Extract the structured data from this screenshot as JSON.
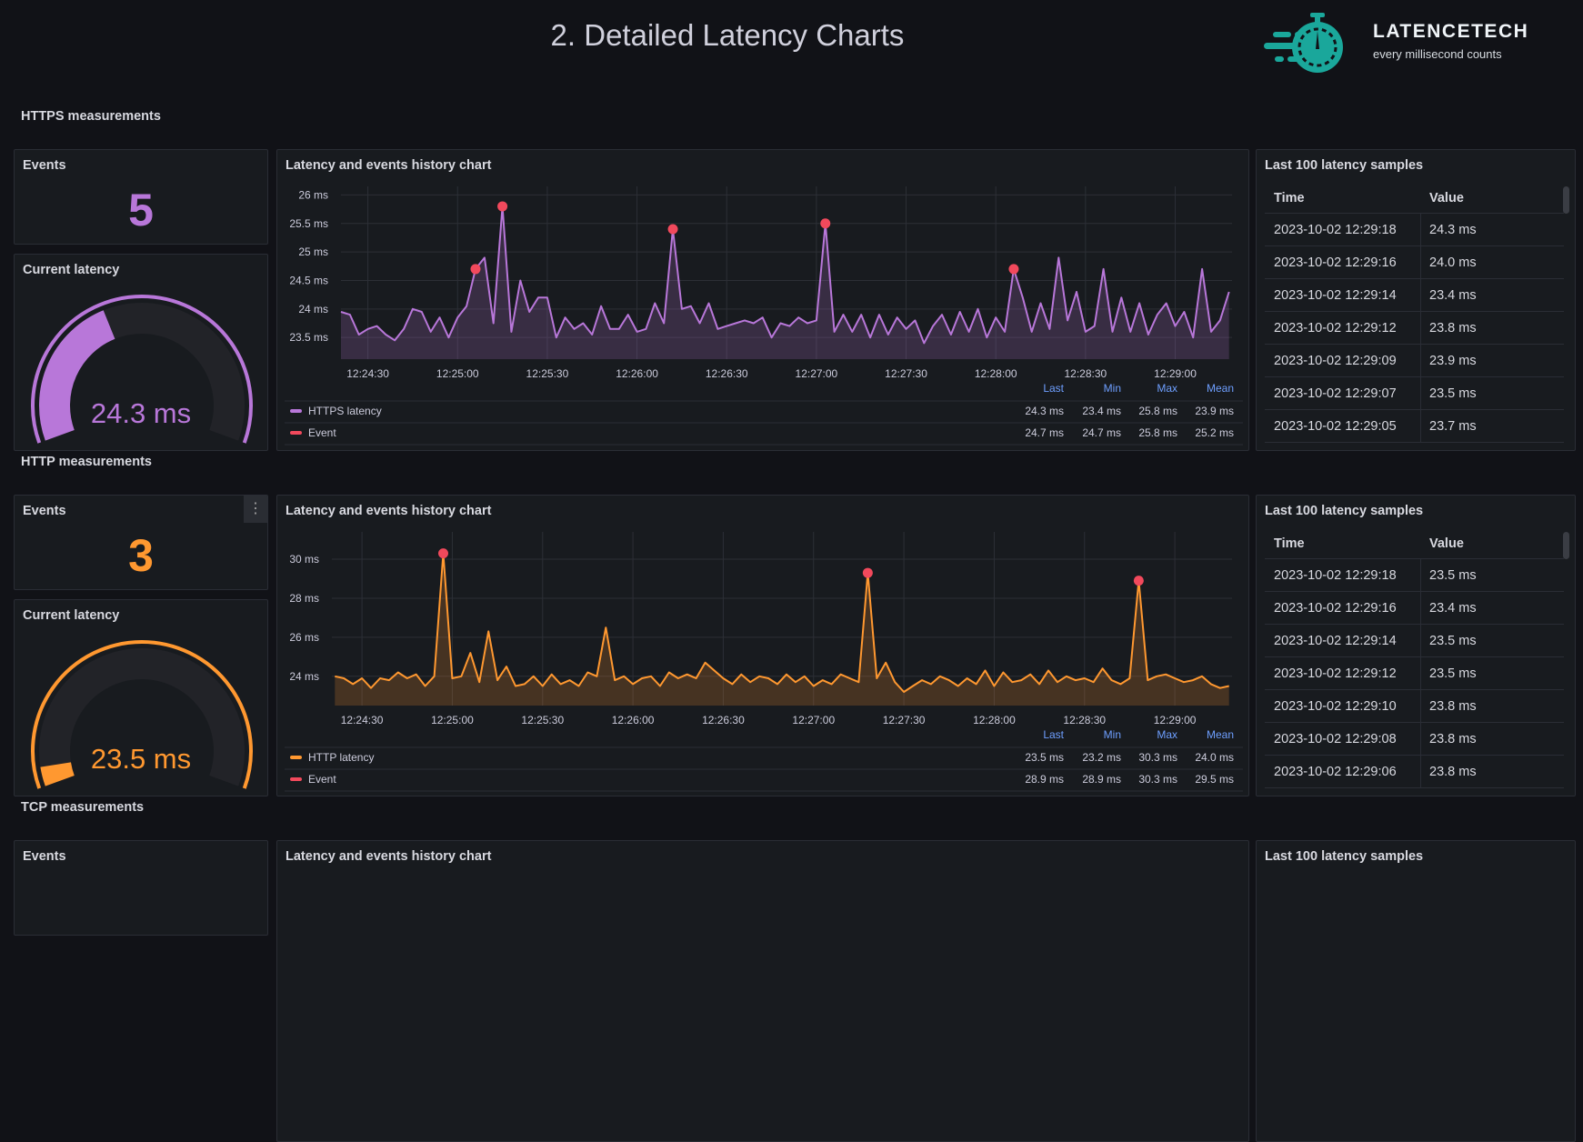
{
  "header": {
    "title": "2. Detailed Latency Charts",
    "logo": {
      "name": "LATENCETECH",
      "tagline": "every millisecond counts",
      "color": "#1aa79b"
    }
  },
  "colors": {
    "https": "#b877d9",
    "http": "#ff9830",
    "event": "#f2495c",
    "legend_header": "#6e9fff"
  },
  "sections": [
    {
      "heading": "HTTPS measurements",
      "events": {
        "title": "Events",
        "value": "5",
        "color": "#b877d9"
      },
      "gauge": {
        "title": "Current latency",
        "value": "24.3 ms",
        "fraction": 0.4,
        "color": "#b877d9"
      },
      "chart": {
        "title": "Latency and events history chart"
      },
      "table": {
        "title": "Last 100 latency samples",
        "columns": [
          "Time",
          "Value"
        ],
        "rows": [
          [
            "2023-10-02 12:29:18",
            "24.3 ms"
          ],
          [
            "2023-10-02 12:29:16",
            "24.0 ms"
          ],
          [
            "2023-10-02 12:29:14",
            "23.4 ms"
          ],
          [
            "2023-10-02 12:29:12",
            "23.8 ms"
          ],
          [
            "2023-10-02 12:29:09",
            "23.9 ms"
          ],
          [
            "2023-10-02 12:29:07",
            "23.5 ms"
          ],
          [
            "2023-10-02 12:29:05",
            "23.7 ms"
          ]
        ]
      }
    },
    {
      "heading": "HTTP measurements",
      "events": {
        "title": "Events",
        "value": "3",
        "color": "#ff9830",
        "menu": "⋮"
      },
      "gauge": {
        "title": "Current latency",
        "value": "23.5 ms",
        "fraction": 0.05,
        "color": "#ff9830"
      },
      "chart": {
        "title": "Latency and events history chart"
      },
      "table": {
        "title": "Last 100 latency samples",
        "columns": [
          "Time",
          "Value"
        ],
        "rows": [
          [
            "2023-10-02 12:29:18",
            "23.5 ms"
          ],
          [
            "2023-10-02 12:29:16",
            "23.4 ms"
          ],
          [
            "2023-10-02 12:29:14",
            "23.5 ms"
          ],
          [
            "2023-10-02 12:29:12",
            "23.5 ms"
          ],
          [
            "2023-10-02 12:29:10",
            "23.8 ms"
          ],
          [
            "2023-10-02 12:29:08",
            "23.8 ms"
          ],
          [
            "2023-10-02 12:29:06",
            "23.8 ms"
          ]
        ]
      }
    },
    {
      "heading": "TCP measurements",
      "events": {
        "title": "Events"
      },
      "chart": {
        "title": "Latency and events history chart"
      },
      "table": {
        "title": "Last 100 latency samples"
      }
    }
  ],
  "chart_data": [
    {
      "type": "line",
      "xlim": [
        "12:24:21",
        "12:29:19"
      ],
      "ylim": [
        23.12,
        26.15
      ],
      "x_ticks": [
        "12:24:30",
        "12:25:00",
        "12:25:30",
        "12:26:00",
        "12:26:30",
        "12:27:00",
        "12:27:30",
        "12:28:00",
        "12:28:30",
        "12:29:00"
      ],
      "y_ticks": [
        {
          "v": 23.5,
          "label": "23.5 ms"
        },
        {
          "v": 24,
          "label": "24 ms"
        },
        {
          "v": 24.5,
          "label": "24.5 ms"
        },
        {
          "v": 25,
          "label": "25 ms"
        },
        {
          "v": 25.5,
          "label": "25.5 ms"
        },
        {
          "v": 26,
          "label": "26 ms"
        }
      ],
      "grid": true,
      "series": [
        {
          "name": "HTTPS latency",
          "color": "#b877d9",
          "x_start": "12:24:21",
          "x_step": "3s",
          "values": [
            23.95,
            23.9,
            23.55,
            23.65,
            23.7,
            23.55,
            23.45,
            23.65,
            24.0,
            23.95,
            23.6,
            23.85,
            23.5,
            23.85,
            24.05,
            24.7,
            24.9,
            23.75,
            25.8,
            23.6,
            24.5,
            23.95,
            24.2,
            24.2,
            23.5,
            23.85,
            23.65,
            23.75,
            23.55,
            24.05,
            23.65,
            23.65,
            23.9,
            23.6,
            23.65,
            24.1,
            23.75,
            25.4,
            24.0,
            24.05,
            23.75,
            24.1,
            23.65,
            23.7,
            23.75,
            23.8,
            23.75,
            23.85,
            23.5,
            23.75,
            23.7,
            23.85,
            23.75,
            23.8,
            25.5,
            23.6,
            23.9,
            23.6,
            23.9,
            23.5,
            23.9,
            23.55,
            23.85,
            23.65,
            23.8,
            23.4,
            23.7,
            23.9,
            23.55,
            23.95,
            23.6,
            24.0,
            23.5,
            23.85,
            23.6,
            24.7,
            24.2,
            23.6,
            24.1,
            23.65,
            24.9,
            23.8,
            24.3,
            23.6,
            23.7,
            24.7,
            23.6,
            24.2,
            23.6,
            24.1,
            23.55,
            23.9,
            24.1,
            23.7,
            23.95,
            23.5,
            24.7,
            23.6,
            23.8,
            24.3
          ]
        },
        {
          "name": "Event",
          "color": "#f2495c",
          "points": [
            {
              "x": "12:25:06",
              "y": 24.7
            },
            {
              "x": "12:25:15",
              "y": 25.8
            },
            {
              "x": "12:26:12",
              "y": 25.4
            },
            {
              "x": "12:27:03",
              "y": 25.5
            },
            {
              "x": "12:28:06",
              "y": 24.7
            }
          ]
        }
      ],
      "legend": {
        "columns": [
          "Last",
          "Min",
          "Max",
          "Mean"
        ],
        "rows": [
          {
            "name": "HTTPS latency",
            "values": [
              "24.3 ms",
              "23.4 ms",
              "25.8 ms",
              "23.9 ms"
            ]
          },
          {
            "name": "Event",
            "values": [
              "24.7 ms",
              "24.7 ms",
              "25.8 ms",
              "25.2 ms"
            ]
          }
        ]
      }
    },
    {
      "type": "line",
      "xlim": [
        "12:24:20",
        "12:29:19"
      ],
      "ylim": [
        22.5,
        31.4
      ],
      "x_ticks": [
        "12:24:30",
        "12:25:00",
        "12:25:30",
        "12:26:00",
        "12:26:30",
        "12:27:00",
        "12:27:30",
        "12:28:00",
        "12:28:30",
        "12:29:00"
      ],
      "y_ticks": [
        {
          "v": 24,
          "label": "24 ms"
        },
        {
          "v": 26,
          "label": "26 ms"
        },
        {
          "v": 28,
          "label": "28 ms"
        },
        {
          "v": 30,
          "label": "30 ms"
        }
      ],
      "grid": true,
      "series": [
        {
          "name": "HTTP latency",
          "color": "#ff9830",
          "x_start": "12:24:21",
          "x_step": "3s",
          "values": [
            24.0,
            23.9,
            23.6,
            23.9,
            23.4,
            23.9,
            23.8,
            24.2,
            23.9,
            24.1,
            23.5,
            24.0,
            30.3,
            23.9,
            24.0,
            25.2,
            23.7,
            26.3,
            23.8,
            24.5,
            23.5,
            23.6,
            24.0,
            23.5,
            24.1,
            23.6,
            23.8,
            23.5,
            24.2,
            24.0,
            26.5,
            23.8,
            24.0,
            23.6,
            23.9,
            24.0,
            23.5,
            24.2,
            23.9,
            24.1,
            23.9,
            24.7,
            24.3,
            23.9,
            23.6,
            24.1,
            23.7,
            24.0,
            23.9,
            23.6,
            24.1,
            23.7,
            24.0,
            23.5,
            23.8,
            23.6,
            24.1,
            23.9,
            23.7,
            29.3,
            23.9,
            24.7,
            23.7,
            23.2,
            23.5,
            23.8,
            23.6,
            24.0,
            23.8,
            23.5,
            23.9,
            23.6,
            24.3,
            23.5,
            24.2,
            23.7,
            23.8,
            24.1,
            23.6,
            24.3,
            23.7,
            24.0,
            23.8,
            23.9,
            23.7,
            24.4,
            23.8,
            23.6,
            23.9,
            28.9,
            23.8,
            24.0,
            24.1,
            23.9,
            23.7,
            23.8,
            24.0,
            23.6,
            23.4,
            23.5
          ]
        },
        {
          "name": "Event",
          "color": "#f2495c",
          "points": [
            {
              "x": "12:24:57",
              "y": 30.3
            },
            {
              "x": "12:27:18",
              "y": 29.3
            },
            {
              "x": "12:28:48",
              "y": 28.9
            }
          ]
        }
      ],
      "legend": {
        "columns": [
          "Last",
          "Min",
          "Max",
          "Mean"
        ],
        "rows": [
          {
            "name": "HTTP latency",
            "values": [
              "23.5 ms",
              "23.2 ms",
              "30.3 ms",
              "24.0 ms"
            ]
          },
          {
            "name": "Event",
            "values": [
              "28.9 ms",
              "28.9 ms",
              "30.3 ms",
              "29.5 ms"
            ]
          }
        ]
      }
    }
  ]
}
